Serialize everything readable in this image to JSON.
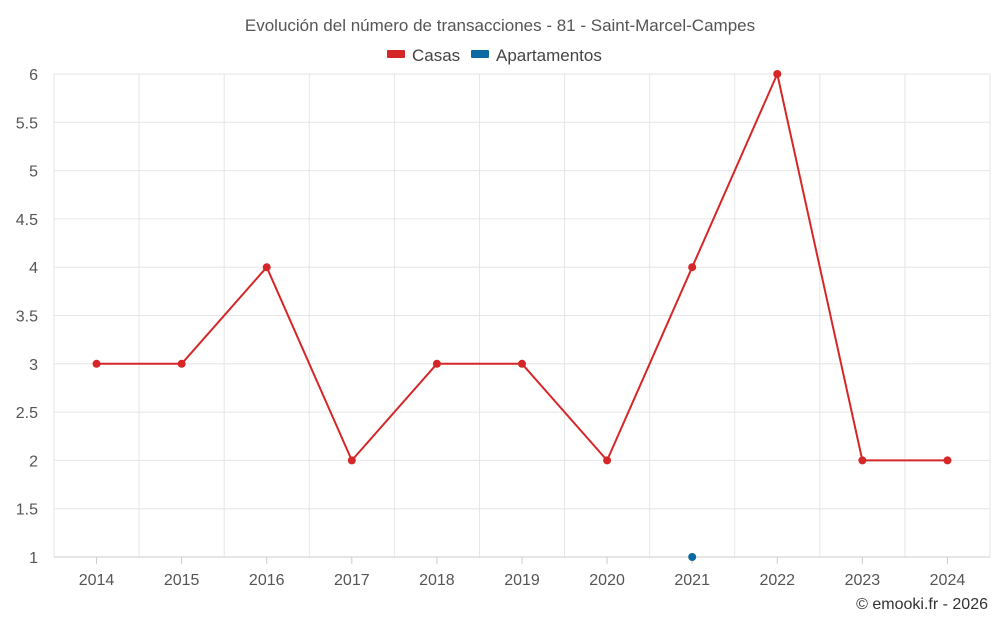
{
  "chart_data": {
    "type": "line",
    "title": "Evolución del número de transacciones - 81 - Saint-Marcel-Campes",
    "categories": [
      "2014",
      "2015",
      "2016",
      "2017",
      "2018",
      "2019",
      "2020",
      "2021",
      "2022",
      "2023",
      "2024"
    ],
    "series": [
      {
        "name": "Casas",
        "color": "#d62728",
        "values": [
          3,
          3,
          4,
          2,
          3,
          3,
          2,
          4,
          6,
          2,
          2
        ]
      },
      {
        "name": "Apartamentos",
        "color": "#0a6aa1",
        "values": [
          null,
          null,
          null,
          null,
          null,
          null,
          null,
          1,
          null,
          null,
          null
        ]
      }
    ],
    "ylim": [
      1,
      6
    ],
    "yticks": [
      "1",
      "1.5",
      "2",
      "2.5",
      "3",
      "3.5",
      "4",
      "4.5",
      "5",
      "5.5",
      "6"
    ],
    "xlabel": "",
    "ylabel": "",
    "grid": true,
    "legend": "top-center",
    "credit": "© emooki.fr - 2026"
  }
}
